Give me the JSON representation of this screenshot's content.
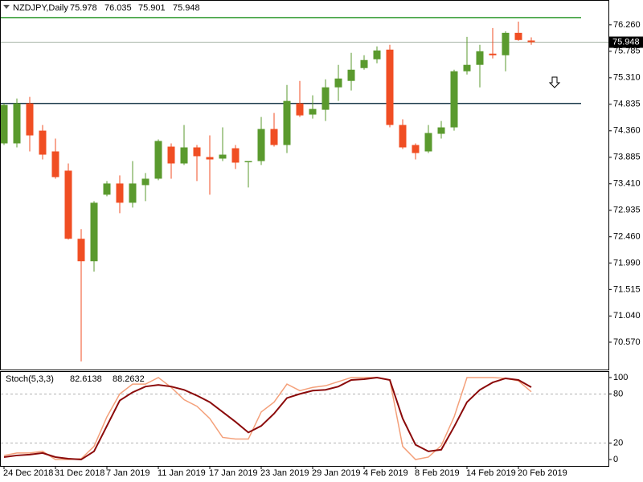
{
  "chart_data": [
    {
      "type": "candlestick",
      "title": "NZDJPY,Daily",
      "categories": [
        "24 Dec 2018",
        null,
        null,
        null,
        "31 Dec 2018",
        null,
        null,
        null,
        "7 Jan 2019",
        null,
        null,
        null,
        "11 Jan 2019",
        null,
        null,
        null,
        "17 Jan 2019",
        null,
        null,
        null,
        "23 Jan 2019",
        null,
        null,
        null,
        "29 Jan 2019",
        null,
        null,
        null,
        "4 Feb 2019",
        null,
        null,
        null,
        "8 Feb 2019",
        null,
        null,
        null,
        "14 Feb 2019",
        null,
        null,
        null,
        "20 Feb 2019",
        null
      ],
      "open": [
        74.134,
        74.134,
        74.852,
        74.363,
        73.99,
        73.645,
        72.424,
        72.021,
        73.214,
        73.415,
        73.07,
        73.386,
        73.501,
        74.076,
        73.774,
        74.062,
        73.889,
        73.861,
        74.047,
        73.803,
        73.817,
        74.392,
        74.105,
        74.852,
        74.651,
        74.737,
        75.139,
        75.254,
        75.484,
        75.642,
        75.815,
        74.464,
        74.105,
        73.99,
        74.306,
        74.421,
        75.427,
        75.542,
        75.743,
        75.714,
        76.116,
        75.978
      ],
      "high": [
        74.852,
        74.938,
        74.967,
        74.464,
        74.22,
        73.774,
        72.596,
        73.099,
        73.458,
        73.559,
        73.817,
        73.602,
        74.205,
        74.134,
        74.464,
        74.105,
        74.277,
        74.421,
        74.105,
        73.817,
        74.608,
        74.679,
        75.182,
        75.254,
        74.996,
        75.283,
        75.542,
        75.757,
        75.714,
        75.872,
        75.901,
        74.565,
        74.134,
        74.464,
        74.536,
        75.455,
        76.044,
        75.901,
        76.202,
        76.145,
        76.317,
        76.035
      ],
      "low": [
        74.105,
        74.062,
        73.99,
        73.846,
        73.501,
        72.409,
        70.225,
        71.835,
        73.185,
        72.883,
        72.984,
        73.099,
        73.473,
        73.501,
        73.746,
        73.458,
        73.214,
        73.817,
        73.674,
        73.343,
        73.746,
        74.076,
        73.961,
        74.608,
        74.579,
        74.536,
        74.895,
        75.082,
        75.455,
        75.57,
        74.421,
        74.033,
        73.846,
        73.961,
        74.22,
        74.363,
        75.369,
        75.139,
        75.657,
        75.427,
        75.973,
        75.901
      ],
      "close": [
        74.823,
        74.852,
        74.277,
        73.932,
        73.53,
        72.424,
        72.021,
        73.07,
        73.415,
        73.07,
        73.415,
        73.501,
        74.177,
        73.774,
        74.062,
        73.904,
        73.846,
        73.932,
        73.789,
        73.817,
        74.392,
        74.105,
        74.895,
        74.636,
        74.751,
        75.139,
        75.297,
        75.455,
        75.628,
        75.8,
        74.464,
        74.062,
        73.961,
        74.32,
        74.421,
        75.427,
        75.542,
        75.786,
        75.714,
        76.116,
        75.987,
        75.948
      ],
      "up_color": "#5a9a2e",
      "down_color": "#f04e23",
      "hlines": [
        {
          "value": 76.39,
          "color": "#2f9a2f"
        },
        {
          "value": 74.85,
          "color": "#1b3a4b"
        }
      ],
      "ylim": [
        70.08,
        76.69
      ],
      "yticks": [
        {
          "value": 76.26,
          "label": "76.260"
        },
        75.785,
        {
          "value": 75.31,
          "label": "75.310"
        },
        74.835,
        {
          "value": 74.36,
          "label": "74.360"
        },
        73.885,
        {
          "value": 73.41,
          "label": "73.410"
        },
        72.935,
        {
          "value": 72.46,
          "label": "72.460"
        },
        {
          "value": 71.99,
          "label": "71.990"
        },
        71.515,
        {
          "value": 71.04,
          "label": "71.040"
        },
        {
          "value": 70.57,
          "label": "70.570"
        }
      ]
    },
    {
      "type": "line",
      "title": "Stoch(5,3,3)",
      "series": [
        {
          "color": "#f4a07a",
          "values": [
            5,
            8,
            8,
            10,
            0,
            0,
            1,
            16,
            52,
            80,
            92,
            92,
            100,
            88,
            73,
            65,
            50,
            27,
            25,
            25,
            58,
            70,
            92,
            84,
            88,
            90,
            95,
            100,
            100,
            100,
            97,
            16,
            0,
            3,
            17,
            52,
            100,
            100,
            100,
            99,
            96,
            82.6138
          ]
        },
        {
          "color": "#8b0a0a",
          "values": [
            3,
            5,
            6,
            8,
            3,
            1,
            0,
            10,
            41,
            72,
            82,
            89,
            91,
            89,
            85,
            78,
            70,
            58,
            46,
            33,
            41,
            56,
            75,
            80,
            84,
            85,
            89,
            97,
            98,
            100,
            97,
            50,
            18,
            10,
            12,
            40,
            70,
            85,
            94,
            99,
            97,
            88.2632
          ]
        }
      ],
      "ylim": [
        -7.8,
        107.8
      ],
      "yticks": [
        0,
        20,
        80,
        100
      ],
      "levels": [
        20,
        80
      ]
    }
  ]
}
